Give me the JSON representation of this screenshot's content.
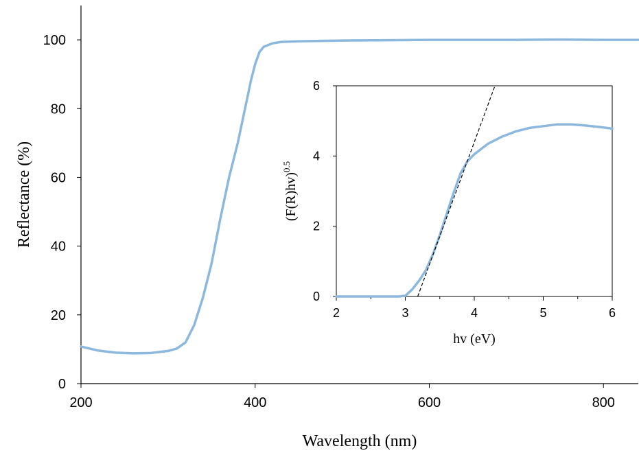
{
  "chart_data": [
    {
      "type": "line",
      "xlabel": "Wavelength (nm)",
      "ylabel": "Reflectance (%)",
      "xlim": [
        200,
        840
      ],
      "ylim": [
        0,
        110
      ],
      "xticks": [
        200,
        400,
        600,
        800
      ],
      "yticks": [
        0,
        20,
        40,
        60,
        80,
        100
      ],
      "grid": false,
      "line_color": "#8cb8de",
      "series": [
        {
          "x": [
            200,
            220,
            240,
            260,
            280,
            300,
            310,
            320,
            330,
            340,
            350,
            360,
            370,
            380,
            390,
            395,
            400,
            405,
            410,
            420,
            430,
            450,
            500,
            550,
            600,
            650,
            700,
            750,
            800,
            840
          ],
          "y": [
            10.8,
            9.6,
            9.0,
            8.8,
            8.9,
            9.5,
            10.2,
            12.0,
            17.0,
            25.0,
            35.0,
            48.0,
            60.0,
            70.0,
            82.0,
            88.0,
            93.0,
            96.5,
            98.0,
            99.0,
            99.4,
            99.6,
            99.8,
            99.9,
            100.0,
            100.0,
            100.0,
            100.1,
            100.0,
            100.0
          ]
        }
      ]
    },
    {
      "type": "line",
      "xlabel": "hv (eV)",
      "ylabel_base": "(F(R)hv)",
      "ylabel_sup": "0.5",
      "xlim": [
        2,
        6
      ],
      "ylim": [
        0,
        6
      ],
      "xticks": [
        2,
        3,
        4,
        5,
        6
      ],
      "yticks": [
        0,
        2,
        4,
        6
      ],
      "grid": false,
      "line_color": "#8cb8de",
      "series": [
        {
          "x": [
            2.0,
            2.5,
            2.9,
            3.0,
            3.1,
            3.2,
            3.3,
            3.4,
            3.5,
            3.6,
            3.7,
            3.8,
            3.9,
            4.0,
            4.2,
            4.4,
            4.6,
            4.8,
            5.0,
            5.2,
            5.4,
            5.6,
            5.8,
            6.0
          ],
          "y": [
            0.0,
            0.0,
            0.0,
            0.02,
            0.2,
            0.45,
            0.75,
            1.2,
            1.75,
            2.35,
            2.95,
            3.5,
            3.85,
            4.05,
            4.35,
            4.55,
            4.7,
            4.8,
            4.85,
            4.9,
            4.9,
            4.87,
            4.83,
            4.78
          ]
        },
        {
          "style": "dashed",
          "x": [
            3.18,
            4.3
          ],
          "y": [
            0.0,
            6.0
          ]
        }
      ]
    }
  ]
}
